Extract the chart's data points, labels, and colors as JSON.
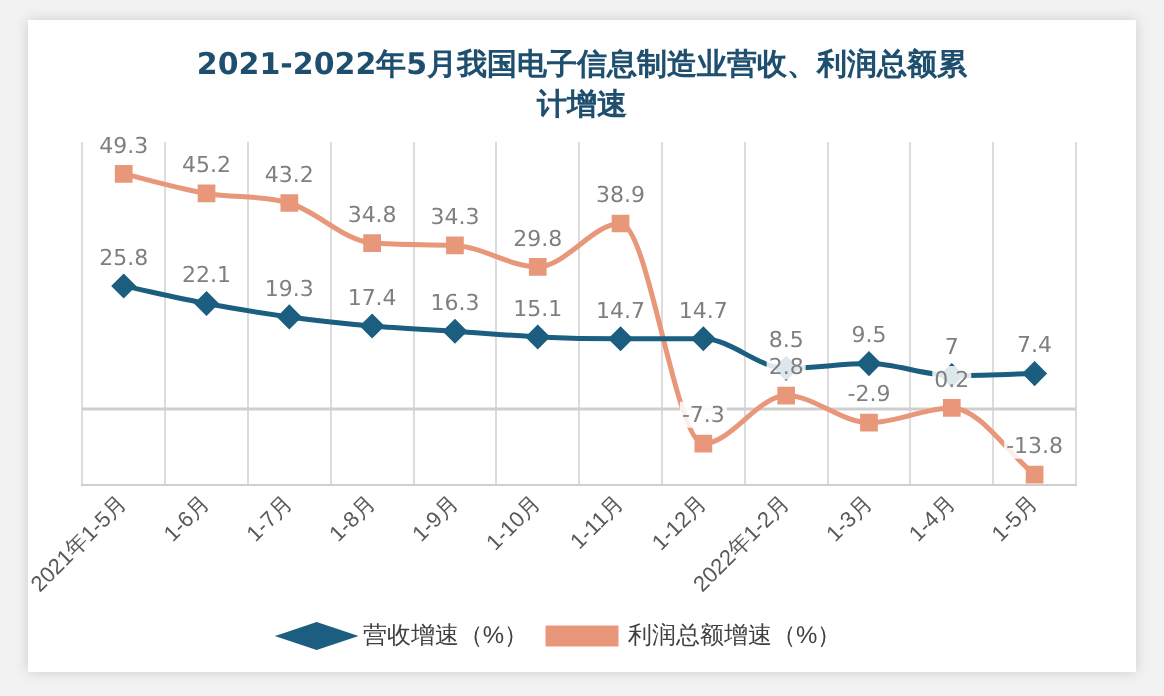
{
  "chart_data": {
    "type": "line",
    "title": "2021-2022年5月我国电子信息制造业营收、利润总额累计增速",
    "categories": [
      "2021年1-5月",
      "1-6月",
      "1-7月",
      "1-8月",
      "1-9月",
      "1-10月",
      "1-11月",
      "1-12月",
      "2022年1-2月",
      "1-3月",
      "1-4月",
      "1-5月"
    ],
    "series": [
      {
        "name": "营收增速（%）",
        "color": "#1b5e80",
        "marker": "diamond",
        "values": [
          25.8,
          22.1,
          19.3,
          17.4,
          16.3,
          15.1,
          14.7,
          14.7,
          8.5,
          9.5,
          7,
          7.4
        ]
      },
      {
        "name": "利润总额增速（%）",
        "color": "#e9977a",
        "marker": "square",
        "values": [
          49.3,
          45.2,
          43.2,
          34.8,
          34.3,
          29.8,
          38.9,
          -7.3,
          2.8,
          -2.9,
          0.2,
          -13.8
        ]
      }
    ],
    "ylim": [
      -16,
      56
    ],
    "ref_lines": [
      {
        "axis": "y",
        "value": 0,
        "color": "#cfcfcf"
      }
    ],
    "data_labels": true,
    "grid": "x",
    "legend": "bottom"
  }
}
